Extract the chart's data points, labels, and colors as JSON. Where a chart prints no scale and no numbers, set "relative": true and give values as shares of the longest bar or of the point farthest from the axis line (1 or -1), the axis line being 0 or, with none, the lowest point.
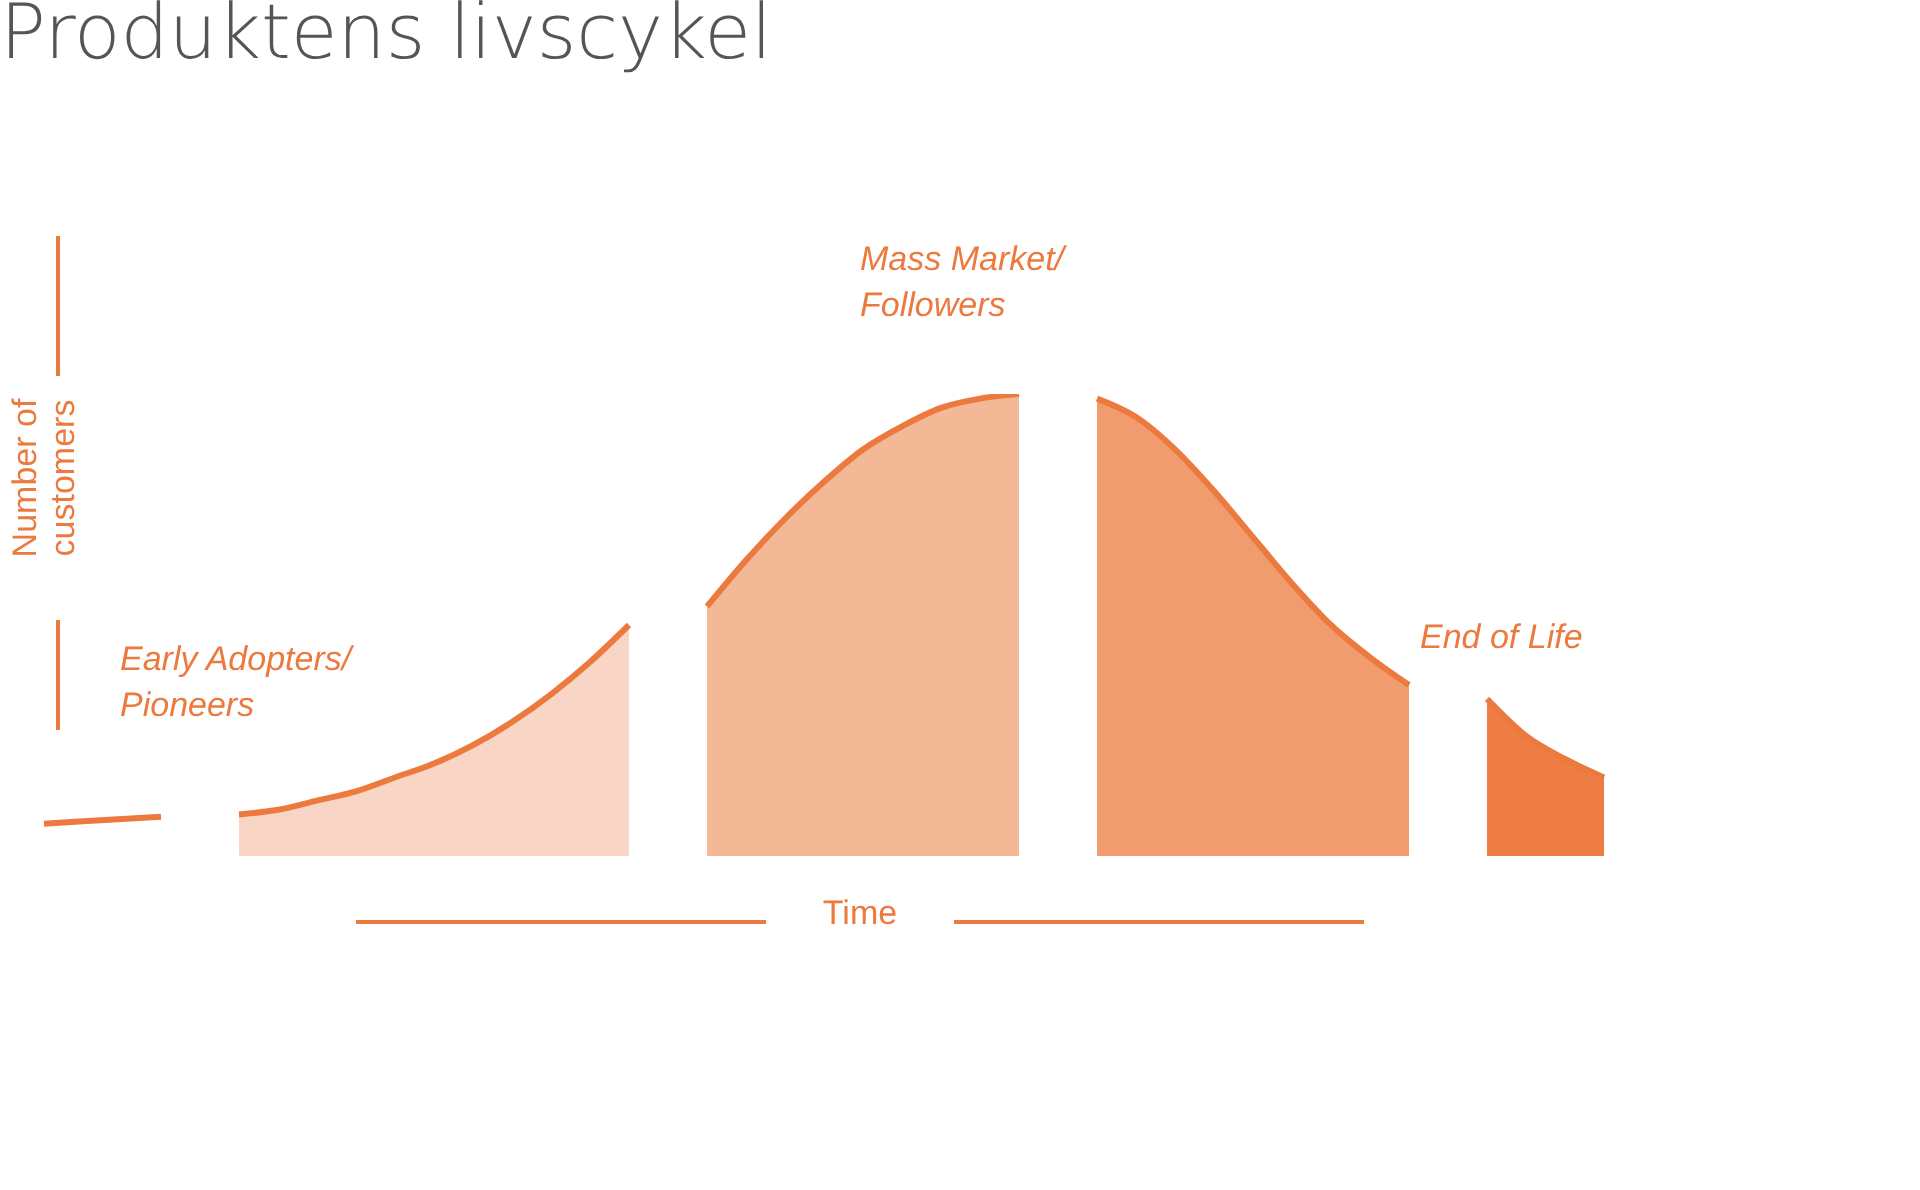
{
  "chart_data": {
    "type": "area",
    "title": "Produktens livscykel",
    "xlabel": "Time",
    "ylabel": "Number of customers",
    "relative": true,
    "annotations": [
      "Early Adopters/ Pioneers",
      "Mass Market/ Followers",
      "End of Life"
    ],
    "categories": [
      null,
      null,
      null,
      null,
      null,
      null,
      null,
      null,
      null,
      null,
      null,
      null,
      null,
      null,
      null,
      null,
      null,
      null,
      null,
      null,
      null,
      null,
      null,
      null,
      null,
      null,
      null,
      null,
      null,
      null,
      null,
      null,
      null,
      null,
      null,
      null,
      null,
      null,
      null,
      null,
      null
    ],
    "series": [
      {
        "color": "#ffffff",
        "values": [
          0.07,
          0.075,
          0.08,
          0.085,
          null,
          null,
          null,
          null,
          null,
          null,
          null,
          null,
          null,
          null,
          null,
          null,
          null,
          null,
          null,
          null,
          null,
          null,
          null,
          null,
          null,
          null,
          null,
          null,
          null,
          null,
          null,
          null,
          null,
          null,
          null,
          null,
          null,
          null,
          null,
          null,
          null
        ]
      },
      {
        "color": "#f8d5c4",
        "values": [
          null,
          null,
          null,
          null,
          null,
          0.09,
          0.1,
          0.12,
          0.14,
          0.17,
          0.2,
          0.24,
          0.29,
          0.35,
          0.42,
          0.5,
          null,
          null,
          null,
          null,
          null,
          null,
          null,
          null,
          null,
          null,
          null,
          null,
          null,
          null,
          null,
          null,
          null,
          null,
          null,
          null,
          null,
          null,
          null,
          null,
          null
        ]
      },
      {
        "color": "#f3b896",
        "values": [
          null,
          null,
          null,
          null,
          null,
          null,
          null,
          null,
          null,
          null,
          null,
          null,
          null,
          null,
          null,
          null,
          null,
          0.54,
          0.64,
          0.73,
          0.81,
          0.88,
          0.93,
          0.97,
          0.99,
          1.0,
          null,
          null,
          null,
          null,
          null,
          null,
          null,
          null,
          null,
          null,
          null,
          null,
          null,
          null,
          null
        ]
      },
      {
        "color": "#f09c6e",
        "values": [
          null,
          null,
          null,
          null,
          null,
          null,
          null,
          null,
          null,
          null,
          null,
          null,
          null,
          null,
          null,
          null,
          null,
          null,
          null,
          null,
          null,
          null,
          null,
          null,
          null,
          null,
          null,
          0.99,
          0.95,
          0.88,
          0.79,
          0.69,
          0.59,
          0.5,
          0.43,
          0.37,
          null,
          null,
          null,
          null,
          null
        ]
      },
      {
        "color": "#ee7d45",
        "values": [
          null,
          null,
          null,
          null,
          null,
          null,
          null,
          null,
          null,
          null,
          null,
          null,
          null,
          null,
          null,
          null,
          null,
          null,
          null,
          null,
          null,
          null,
          null,
          null,
          null,
          null,
          null,
          null,
          null,
          null,
          null,
          null,
          null,
          null,
          null,
          null,
          null,
          0.34,
          0.26,
          0.21,
          0.17
        ]
      }
    ]
  }
}
